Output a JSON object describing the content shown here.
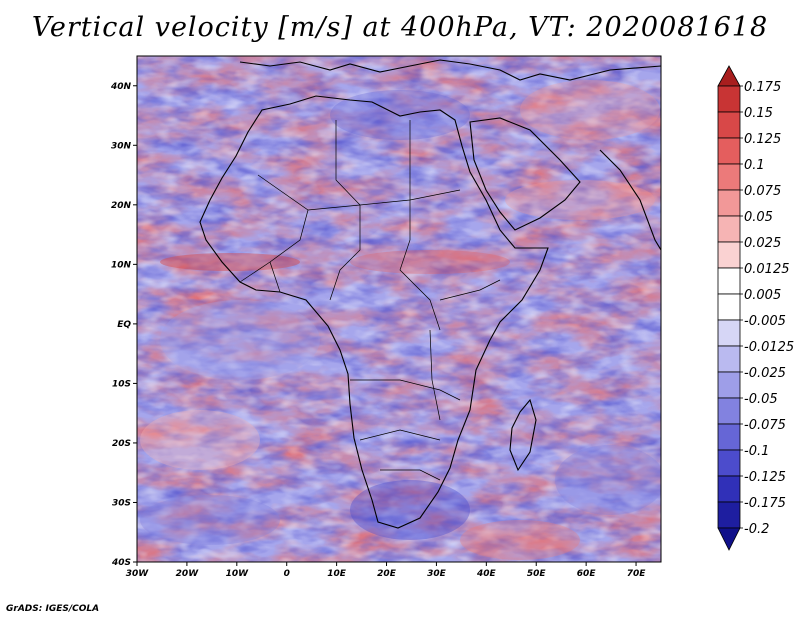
{
  "title": "Vertical velocity [m/s] at 400hPa, VT: 2020081618",
  "credit": "GrADS: IGES/COLA",
  "map": {
    "lon_range": [
      -30,
      75
    ],
    "lat_range": [
      -40,
      45
    ],
    "lat_ticks": [
      "40N",
      "30N",
      "20N",
      "10N",
      "EQ",
      "10S",
      "20S",
      "30S",
      "40S"
    ],
    "lon_ticks": [
      "30W",
      "20W",
      "10W",
      "0",
      "10E",
      "20E",
      "30E",
      "40E",
      "50E",
      "60E",
      "70E"
    ]
  },
  "colorbar": {
    "levels": [
      "0.175",
      "0.15",
      "0.125",
      "0.1",
      "0.075",
      "0.05",
      "0.025",
      "0.0125",
      "0.005",
      "-0.005",
      "-0.0125",
      "-0.025",
      "-0.05",
      "-0.075",
      "-0.1",
      "-0.125",
      "-0.175",
      "-0.2"
    ],
    "colors": [
      "#a81e1e",
      "#c83434",
      "#d84848",
      "#e45e5e",
      "#ec7a7a",
      "#f29898",
      "#f6b4b4",
      "#fad2d2",
      "#ffffff",
      "#ffffff",
      "#d6d6f6",
      "#babaf0",
      "#9e9ee8",
      "#8282e0",
      "#6666d6",
      "#4c4ccc",
      "#3030b8",
      "#1e1ea0",
      "#10108a"
    ]
  }
}
